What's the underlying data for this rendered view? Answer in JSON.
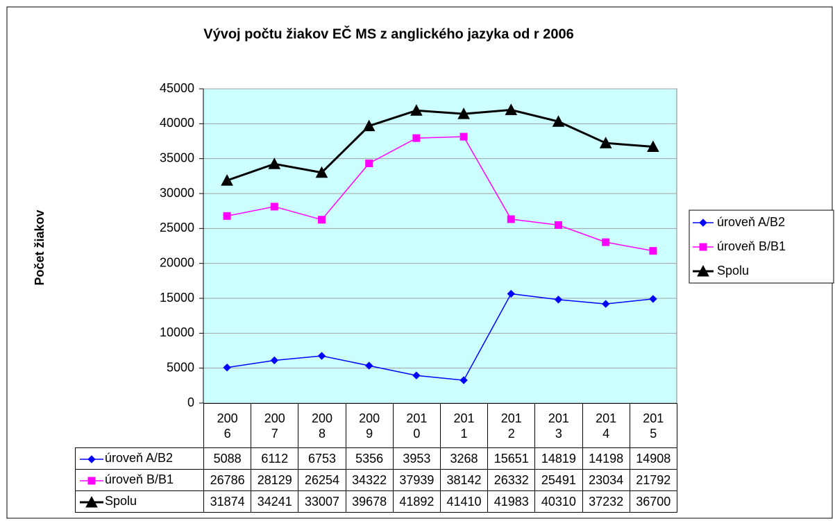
{
  "chart_data": {
    "type": "line",
    "title": "Vývoj počtu žiakov EČ MS z anglického jazyka od r 2006",
    "y_label": "Počet žiakov",
    "categories": [
      "2006",
      "2007",
      "2008",
      "2009",
      "2010",
      "2011",
      "2012",
      "2013",
      "2014",
      "2015"
    ],
    "series": [
      {
        "name": "úroveň A/B2",
        "color": "#0000ff",
        "marker": "diamond",
        "values": [
          5088,
          6112,
          6753,
          5356,
          3953,
          3268,
          15651,
          14819,
          14198,
          14908
        ]
      },
      {
        "name": "úroveň B/B1",
        "color": "#ff00ff",
        "marker": "square",
        "values": [
          26786,
          28129,
          26254,
          34322,
          37939,
          38142,
          26332,
          25491,
          23034,
          21792
        ]
      },
      {
        "name": "Spolu",
        "color": "#000000",
        "marker": "triangle",
        "values": [
          31874,
          34241,
          33007,
          39678,
          41892,
          41410,
          41983,
          40310,
          37232,
          36700
        ]
      }
    ],
    "ylim": [
      0,
      45000
    ],
    "yticks": [
      0,
      5000,
      10000,
      15000,
      20000,
      25000,
      30000,
      35000,
      40000,
      45000
    ],
    "grid": true,
    "legend": "right"
  }
}
